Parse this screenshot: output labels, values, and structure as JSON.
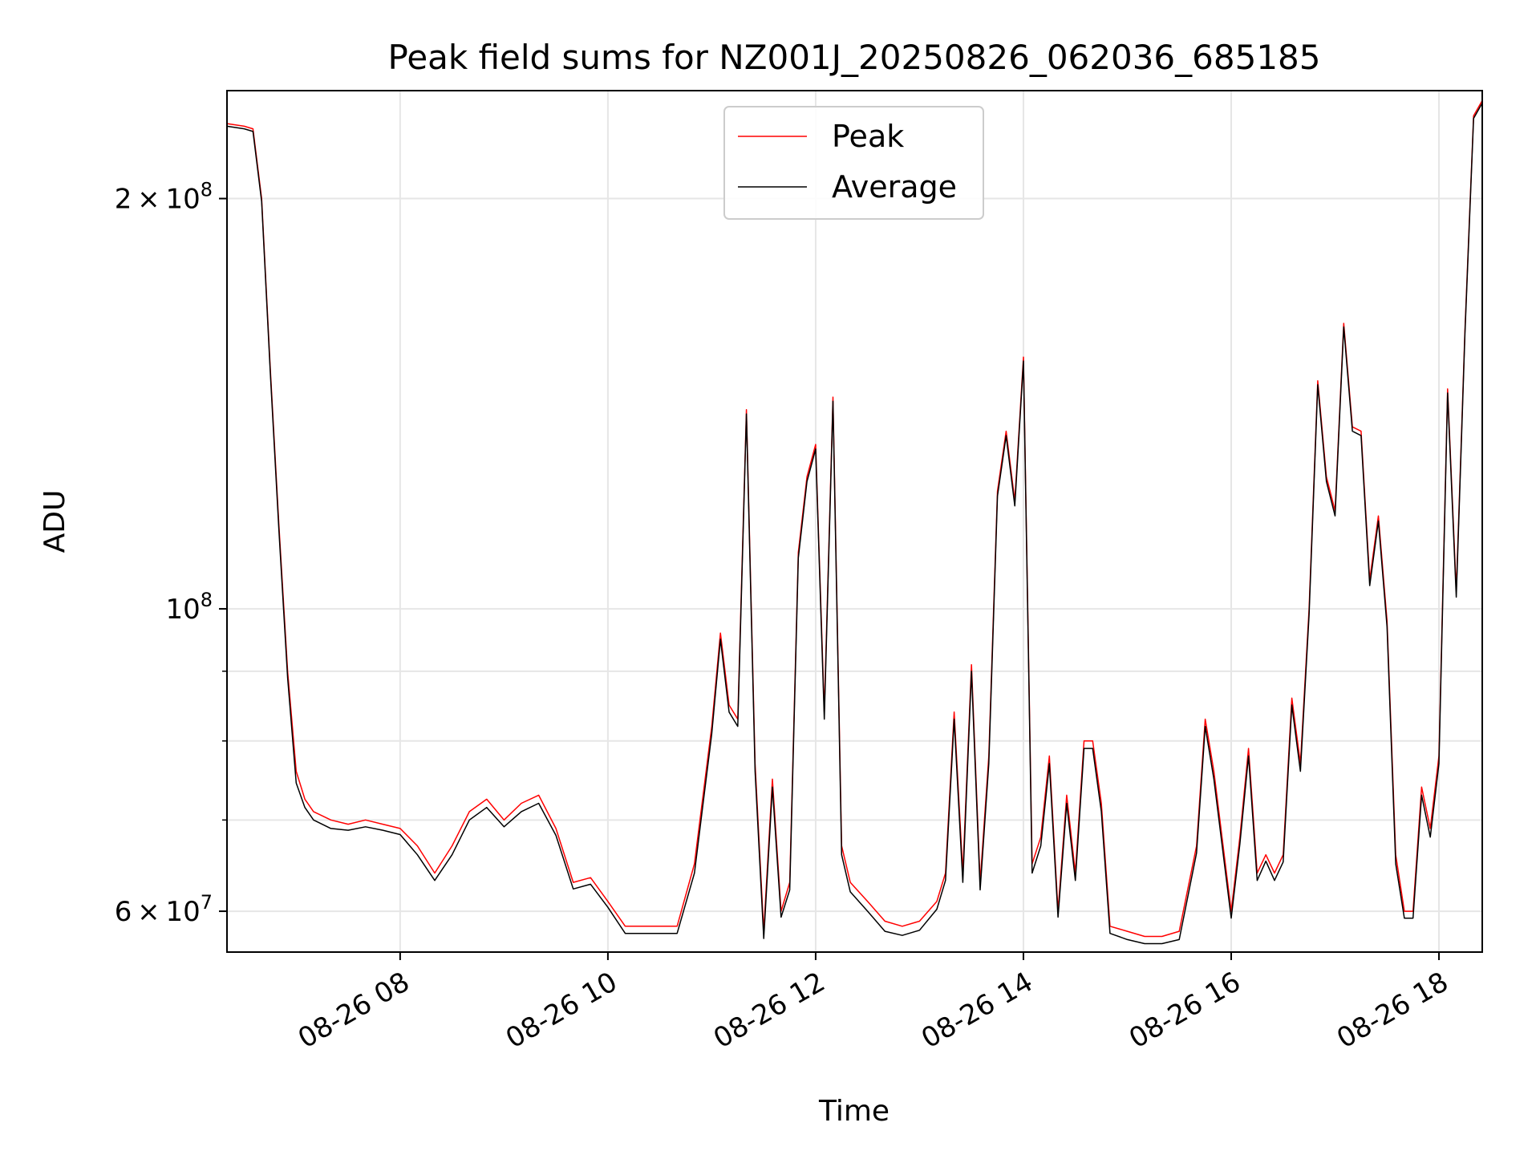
{
  "chart_data": {
    "type": "line",
    "title": "Peak field sums for NZ001J_20250826_062036_685185",
    "xlabel": "Time",
    "ylabel": "ADU",
    "yscale": "log",
    "grid": true,
    "legend_position": "top-center",
    "xlim": [
      "2025-08-26 06:20",
      "2025-08-26 18:25"
    ],
    "ylim": [
      56000000,
      240000000
    ],
    "x_ticks": [
      "08-26 08",
      "08-26 10",
      "08-26 12",
      "08-26 14",
      "08-26 16",
      "08-26 18"
    ],
    "y_ticks": [
      {
        "value": 60000000,
        "base": "6",
        "times": "×",
        "power": "10",
        "exp": "7"
      },
      {
        "value": 100000000,
        "base": "",
        "times": "",
        "power": "10",
        "exp": "8"
      },
      {
        "value": 200000000,
        "base": "2",
        "times": "×",
        "power": "10",
        "exp": "8"
      }
    ],
    "x": [
      "2025-08-26 06:20",
      "2025-08-26 06:30",
      "2025-08-26 06:35",
      "2025-08-26 06:40",
      "2025-08-26 06:45",
      "2025-08-26 06:50",
      "2025-08-26 06:55",
      "2025-08-26 07:00",
      "2025-08-26 07:05",
      "2025-08-26 07:10",
      "2025-08-26 07:20",
      "2025-08-26 07:30",
      "2025-08-26 07:40",
      "2025-08-26 07:50",
      "2025-08-26 08:00",
      "2025-08-26 08:10",
      "2025-08-26 08:20",
      "2025-08-26 08:30",
      "2025-08-26 08:40",
      "2025-08-26 08:50",
      "2025-08-26 09:00",
      "2025-08-26 09:10",
      "2025-08-26 09:20",
      "2025-08-26 09:30",
      "2025-08-26 09:40",
      "2025-08-26 09:50",
      "2025-08-26 10:00",
      "2025-08-26 10:10",
      "2025-08-26 10:20",
      "2025-08-26 10:40",
      "2025-08-26 10:50",
      "2025-08-26 11:00",
      "2025-08-26 11:05",
      "2025-08-26 11:10",
      "2025-08-26 11:15",
      "2025-08-26 11:20",
      "2025-08-26 11:25",
      "2025-08-26 11:30",
      "2025-08-26 11:35",
      "2025-08-26 11:40",
      "2025-08-26 11:45",
      "2025-08-26 11:50",
      "2025-08-26 11:55",
      "2025-08-26 12:00",
      "2025-08-26 12:05",
      "2025-08-26 12:10",
      "2025-08-26 12:15",
      "2025-08-26 12:20",
      "2025-08-26 12:30",
      "2025-08-26 12:40",
      "2025-08-26 12:50",
      "2025-08-26 13:00",
      "2025-08-26 13:10",
      "2025-08-26 13:15",
      "2025-08-26 13:20",
      "2025-08-26 13:25",
      "2025-08-26 13:30",
      "2025-08-26 13:35",
      "2025-08-26 13:40",
      "2025-08-26 13:45",
      "2025-08-26 13:50",
      "2025-08-26 13:55",
      "2025-08-26 14:00",
      "2025-08-26 14:05",
      "2025-08-26 14:10",
      "2025-08-26 14:15",
      "2025-08-26 14:20",
      "2025-08-26 14:25",
      "2025-08-26 14:30",
      "2025-08-26 14:35",
      "2025-08-26 14:40",
      "2025-08-26 14:45",
      "2025-08-26 14:50",
      "2025-08-26 15:00",
      "2025-08-26 15:10",
      "2025-08-26 15:20",
      "2025-08-26 15:30",
      "2025-08-26 15:40",
      "2025-08-26 15:45",
      "2025-08-26 15:50",
      "2025-08-26 16:00",
      "2025-08-26 16:05",
      "2025-08-26 16:10",
      "2025-08-26 16:15",
      "2025-08-26 16:20",
      "2025-08-26 16:25",
      "2025-08-26 16:30",
      "2025-08-26 16:35",
      "2025-08-26 16:40",
      "2025-08-26 16:45",
      "2025-08-26 16:50",
      "2025-08-26 16:55",
      "2025-08-26 17:00",
      "2025-08-26 17:05",
      "2025-08-26 17:10",
      "2025-08-26 17:15",
      "2025-08-26 17:20",
      "2025-08-26 17:25",
      "2025-08-26 17:30",
      "2025-08-26 17:35",
      "2025-08-26 17:40",
      "2025-08-26 17:45",
      "2025-08-26 17:50",
      "2025-08-26 17:55",
      "2025-08-26 18:00",
      "2025-08-26 18:05",
      "2025-08-26 18:10",
      "2025-08-26 18:15",
      "2025-08-26 18:20",
      "2025-08-26 18:25"
    ],
    "series": [
      {
        "name": "Peak",
        "color": "#ff0000",
        "stroke_width": 1.5,
        "values": [
          227000000,
          226000000,
          225000000,
          200000000,
          150000000,
          115000000,
          90000000,
          76000000,
          72500000,
          71000000,
          70000000,
          69500000,
          70000000,
          69500000,
          69000000,
          67000000,
          64000000,
          67000000,
          71000000,
          72500000,
          70000000,
          72000000,
          73000000,
          69000000,
          63000000,
          63500000,
          61000000,
          58500000,
          58500000,
          58500000,
          65000000,
          82000000,
          96000000,
          85000000,
          83000000,
          140000000,
          77000000,
          58000000,
          75000000,
          60000000,
          63000000,
          110000000,
          125000000,
          132000000,
          84000000,
          143000000,
          67000000,
          63000000,
          61000000,
          59000000,
          58500000,
          59000000,
          61000000,
          64000000,
          84000000,
          64000000,
          91000000,
          63000000,
          78000000,
          122000000,
          135000000,
          120000000,
          153000000,
          65000000,
          68000000,
          78000000,
          60000000,
          73000000,
          64000000,
          80000000,
          80000000,
          72000000,
          58500000,
          58000000,
          57500000,
          57500000,
          58000000,
          67000000,
          83000000,
          76000000,
          60000000,
          68000000,
          79000000,
          64000000,
          66000000,
          64000000,
          66000000,
          86000000,
          77000000,
          100000000,
          147000000,
          125000000,
          118000000,
          162000000,
          136000000,
          135000000,
          105000000,
          117000000,
          98000000,
          66000000,
          60000000,
          60000000,
          74000000,
          69000000,
          78000000,
          145000000,
          103000000,
          160000000,
          230000000,
          236000000
        ]
      },
      {
        "name": "Average",
        "color": "#000000",
        "stroke_width": 1.5,
        "values": [
          226000000,
          225000000,
          224000000,
          199000000,
          149000000,
          114000000,
          89000000,
          74500000,
          71500000,
          70000000,
          69000000,
          68800000,
          69200000,
          68800000,
          68300000,
          66000000,
          63200000,
          66000000,
          70000000,
          71500000,
          69200000,
          71000000,
          72000000,
          68200000,
          62300000,
          62800000,
          60400000,
          57800000,
          57800000,
          57800000,
          64000000,
          81000000,
          95000000,
          84000000,
          82000000,
          139000000,
          76000000,
          57300000,
          74000000,
          59400000,
          62200000,
          109000000,
          124000000,
          131000000,
          83000000,
          142000000,
          66000000,
          62000000,
          60000000,
          58000000,
          57600000,
          58100000,
          60200000,
          63200000,
          83000000,
          63000000,
          90000000,
          62200000,
          77000000,
          121000000,
          134000000,
          119000000,
          152000000,
          64000000,
          67000000,
          77000000,
          59400000,
          72000000,
          63200000,
          79000000,
          79000000,
          71000000,
          57800000,
          57200000,
          56800000,
          56800000,
          57200000,
          66200000,
          82000000,
          75000000,
          59300000,
          67200000,
          78000000,
          63200000,
          65300000,
          63200000,
          65200000,
          85000000,
          76000000,
          99000000,
          146000000,
          124000000,
          117000000,
          161000000,
          135000000,
          134000000,
          104000000,
          116000000,
          97000000,
          65000000,
          59300000,
          59300000,
          73000000,
          68000000,
          77000000,
          144000000,
          102000000,
          159000000,
          229000000,
          235000000
        ]
      }
    ]
  }
}
